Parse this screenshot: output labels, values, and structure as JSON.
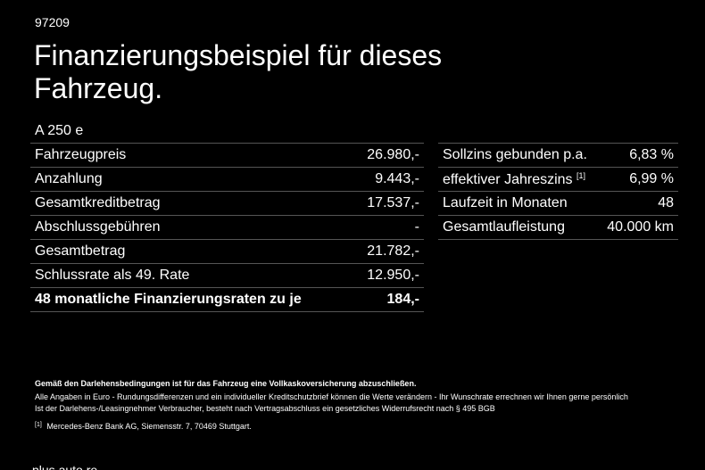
{
  "ref_id": "97209",
  "headline": "Finanzierungsbeispiel für dieses Fahrzeug.",
  "model": "A 250 e",
  "left_table": [
    {
      "label": "Fahrzeugpreis",
      "value": "26.980,-"
    },
    {
      "label": "Anzahlung",
      "value": "9.443,-"
    },
    {
      "label": "Gesamtkreditbetrag",
      "value": "17.537,-"
    },
    {
      "label": "Abschlussgebühren",
      "value": "-"
    },
    {
      "label": "Gesamtbetrag",
      "value": "21.782,-"
    },
    {
      "label": "Schlussrate als 49. Rate",
      "value": "12.950,-"
    },
    {
      "label": "48 monatliche Finanzierungsraten zu je",
      "value": "184,-"
    }
  ],
  "right_table": [
    {
      "label": "Sollzins gebunden p.a.",
      "value": "6,83 %"
    },
    {
      "label": "effektiver Jahreszins",
      "footnote": "[1]",
      "value": "6,99 %"
    },
    {
      "label": "Laufzeit in Monaten",
      "value": "48"
    },
    {
      "label": "Gesamtlaufleistung",
      "value": "40.000 km"
    }
  ],
  "notes": {
    "bold": "Gemäß den Darlehensbedingungen ist für das Fahrzeug eine Vollkaskoversicherung abzuschließen.",
    "line1": "Alle Angaben in Euro - Rundungsdifferenzen und ein individueller Kreditschutzbrief können die Werte verändern - Ihr Wunschrate errechnen wir Ihnen gerne persönlich",
    "line2": "Ist der Darlehens-/Leasingnehmer Verbraucher, besteht nach Vertragsabschluss ein gesetzliches Widerrufsrecht nach § 495 BGB",
    "footnote_mark": "[1]",
    "footnote_text": "Mercedes-Benz Bank AG, Siemensstr. 7, 70469 Stuttgart."
  },
  "cut_text": "plus auto.re"
}
